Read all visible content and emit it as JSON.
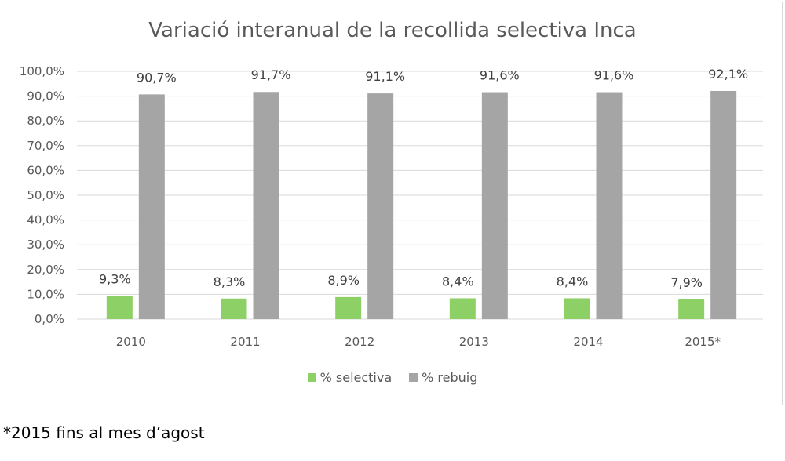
{
  "chart_data": {
    "type": "bar",
    "title": "Variació interanual de la recollida selectiva Inca",
    "categories": [
      "2010",
      "2011",
      "2012",
      "2013",
      "2014",
      "2015*"
    ],
    "series": [
      {
        "name": "% selectiva",
        "color": "#8dd166",
        "values": [
          9.3,
          8.3,
          8.9,
          8.4,
          8.4,
          7.9
        ],
        "labels": [
          "9,3%",
          "8,3%",
          "8,9%",
          "8,4%",
          "8,4%",
          "7,9%"
        ]
      },
      {
        "name": "% rebuig",
        "color": "#a5a5a5",
        "values": [
          90.7,
          91.7,
          91.1,
          91.6,
          91.6,
          92.1
        ],
        "labels": [
          "90,7%",
          "91,7%",
          "91,1%",
          "91,6%",
          "91,6%",
          "92,1%"
        ]
      }
    ],
    "ylim": [
      0,
      100
    ],
    "yticks": [
      "0,0%",
      "10,0%",
      "20,0%",
      "30,0%",
      "40,0%",
      "50,0%",
      "60,0%",
      "70,0%",
      "80,0%",
      "90,0%",
      "100,0%"
    ],
    "grid": true,
    "legend": "bottom"
  },
  "footnote": "*2015 fins al mes d’agost"
}
